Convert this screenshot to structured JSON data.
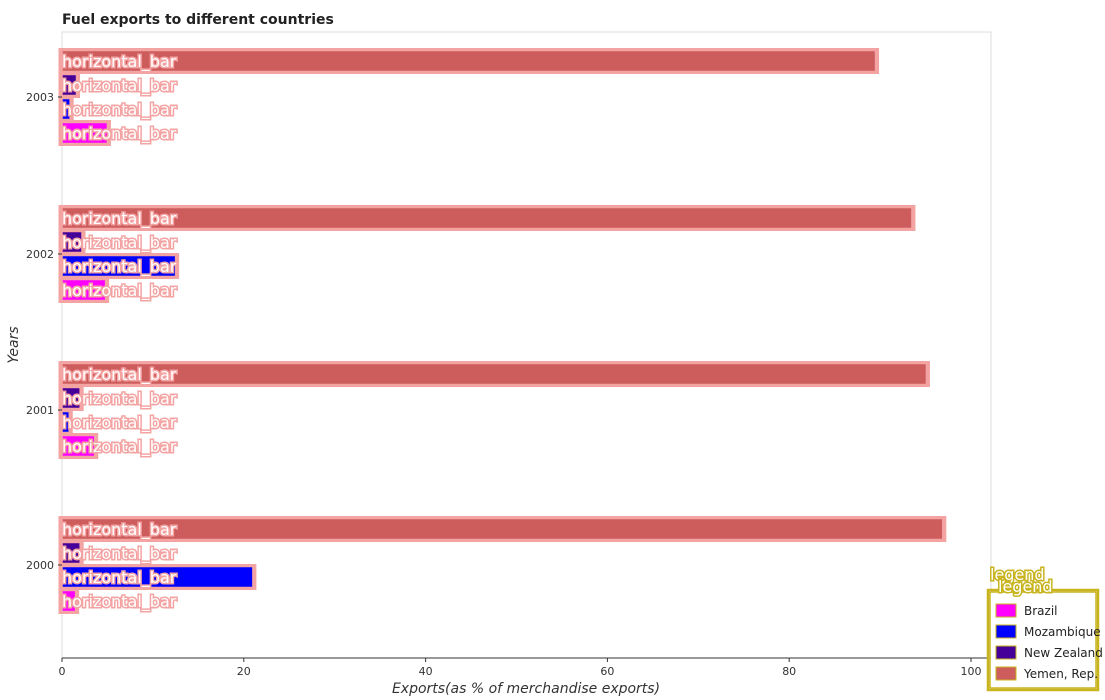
{
  "chart_data": {
    "type": "bar",
    "orientation": "horizontal",
    "title": "Fuel exports to different countries",
    "xlabel": "Exports(as % of merchandise exports)",
    "ylabel": "Years",
    "categories": [
      "2000",
      "2001",
      "2002",
      "2003"
    ],
    "xlim": [
      0,
      100
    ],
    "xticks": [
      0,
      20,
      40,
      60,
      80,
      100
    ],
    "series": [
      {
        "name": "Brazil",
        "color": "#ff00ff",
        "values": [
          1.5,
          3.6,
          4.8,
          5.0
        ]
      },
      {
        "name": "Mozambique",
        "color": "#0000ff",
        "values": [
          21.0,
          0.8,
          12.5,
          0.9
        ]
      },
      {
        "name": "New Zealand",
        "color": "#440099",
        "values": [
          2.0,
          2.0,
          2.2,
          1.6
        ]
      },
      {
        "name": "Yemen, Rep.",
        "color": "#cd5c5c",
        "values": [
          96.9,
          95.1,
          93.5,
          89.5
        ]
      }
    ],
    "bar_label_text": "horizontal_bar",
    "legend": {
      "title": "legend",
      "position": "bottom-right"
    },
    "grid": false
  }
}
